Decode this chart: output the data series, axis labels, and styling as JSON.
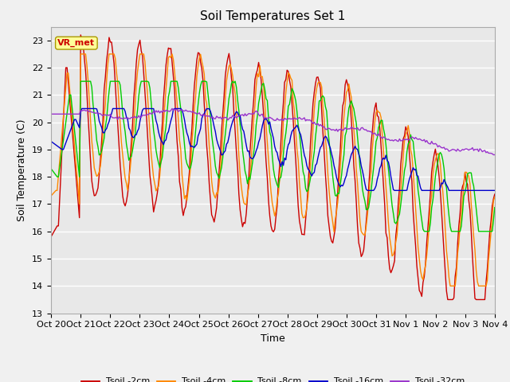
{
  "title": "Soil Temperatures Set 1",
  "xlabel": "Time",
  "ylabel": "Soil Temperature (C)",
  "ylim": [
    13.0,
    23.5
  ],
  "yticks": [
    13.0,
    14.0,
    15.0,
    16.0,
    17.0,
    18.0,
    19.0,
    20.0,
    21.0,
    22.0,
    23.0
  ],
  "xtick_labels": [
    "Oct 20",
    "Oct 21",
    "Oct 22",
    "Oct 23",
    "Oct 24",
    "Oct 25",
    "Oct 26",
    "Oct 27",
    "Oct 28",
    "Oct 29",
    "Oct 30",
    "Oct 31",
    "Nov 1",
    "Nov 2",
    "Nov 3",
    "Nov 4"
  ],
  "series_colors": [
    "#cc0000",
    "#ff8800",
    "#00cc00",
    "#0000cc",
    "#9933cc"
  ],
  "series_labels": [
    "Tsoil -2cm",
    "Tsoil -4cm",
    "Tsoil -8cm",
    "Tsoil -16cm",
    "Tsoil -32cm"
  ],
  "annotation_text": "VR_met",
  "annotation_color": "#cc0000",
  "annotation_bg": "#ffff99",
  "plot_bg_color": "#e8e8e8",
  "fig_bg_color": "#f0f0f0",
  "grid_color": "#ffffff",
  "title_fontsize": 11,
  "label_fontsize": 9,
  "tick_fontsize": 8
}
